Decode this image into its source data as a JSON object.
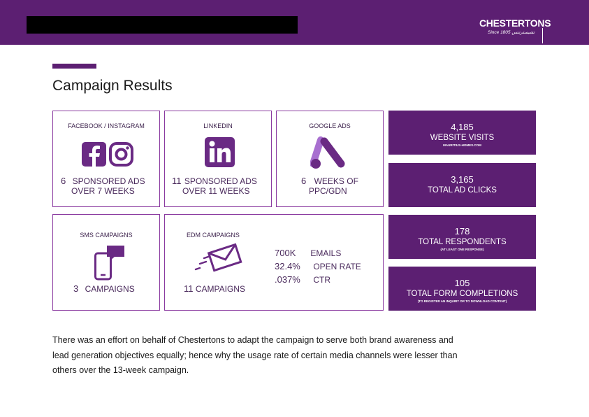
{
  "header": {
    "brand": "CHESTERTONS",
    "tagline": "Since 1805 تشيسترتنس"
  },
  "page_title": "Campaign Results",
  "channels": {
    "facebook": {
      "label": "FACEBOOK / INSTAGRAM",
      "num": "6",
      "line1": "SPONSORED ADS",
      "line2": "OVER 7 WEEKS"
    },
    "linkedin": {
      "label": "LINKEDIN",
      "num": "11",
      "line1": "SPONSORED ADS",
      "line2": "OVER 11 WEEKS"
    },
    "google": {
      "label": "GOOGLE ADS",
      "num": "6",
      "line1": "WEEKS OF",
      "line2": "PPC/GDN"
    },
    "sms": {
      "label": "SMS CAMPAIGNS",
      "num": "3",
      "line1": "CAMPAIGNS"
    },
    "edm": {
      "label": "EDM CAMPAIGNS",
      "num": "11",
      "line1": "CAMPAIGNS",
      "metrics": [
        {
          "value": "700K",
          "label": "EMAILS"
        },
        {
          "value": "32.4%",
          "label": "OPEN RATE"
        },
        {
          "value": ".037%",
          "label": "CTR"
        }
      ]
    }
  },
  "kpis": [
    {
      "value": "4,185",
      "label": "WEBSITE VISITS",
      "sub": "MAURITIUS-HOMES.COM"
    },
    {
      "value": "3,165",
      "label": "TOTAL AD CLICKS",
      "sub": ""
    },
    {
      "value": "178",
      "label": "TOTAL RESPONDENTS",
      "sub": "(AT LEAST ONE RESPONSE)"
    },
    {
      "value": "105",
      "label": "TOTAL FORM COMPLETIONS",
      "sub": "(TO REGISTER AN INQUIRY OR TO DOWNLOAD CONTENT)"
    }
  ],
  "summary": "There was an effort on behalf of Chestertons to adapt the campaign to serve both brand awareness and lead generation objectives equally; hence why the usage rate of certain media channels were lesser than others over the 13-week campaign.",
  "colors": {
    "brand_purple": "#5c1f72",
    "card_border": "#8a3aa0",
    "icon_purple": "#6a2a84"
  }
}
